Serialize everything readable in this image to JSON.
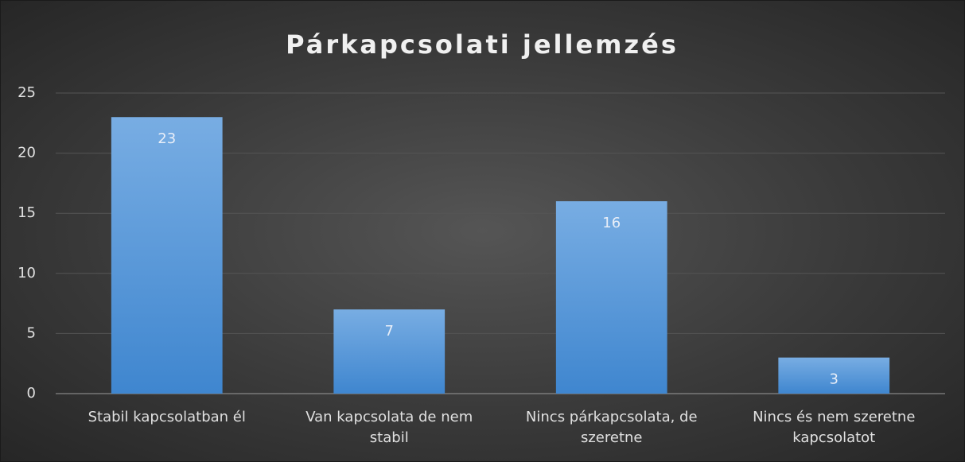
{
  "chart_data": {
    "type": "bar",
    "title": "Párkapcsolati jellemzés",
    "categories": [
      "Stabil kapcsolatban él",
      "Van kapcsolata de nem stabil",
      "Nincs párkapcsolata, de szeretne",
      "Nincs és nem szeretne kapcsolatot"
    ],
    "values": [
      23,
      7,
      16,
      3
    ],
    "color": "#5b9bd5",
    "ylim": [
      0,
      25
    ],
    "yticks": [
      0,
      5,
      10,
      15,
      20,
      25
    ],
    "grid": true
  }
}
